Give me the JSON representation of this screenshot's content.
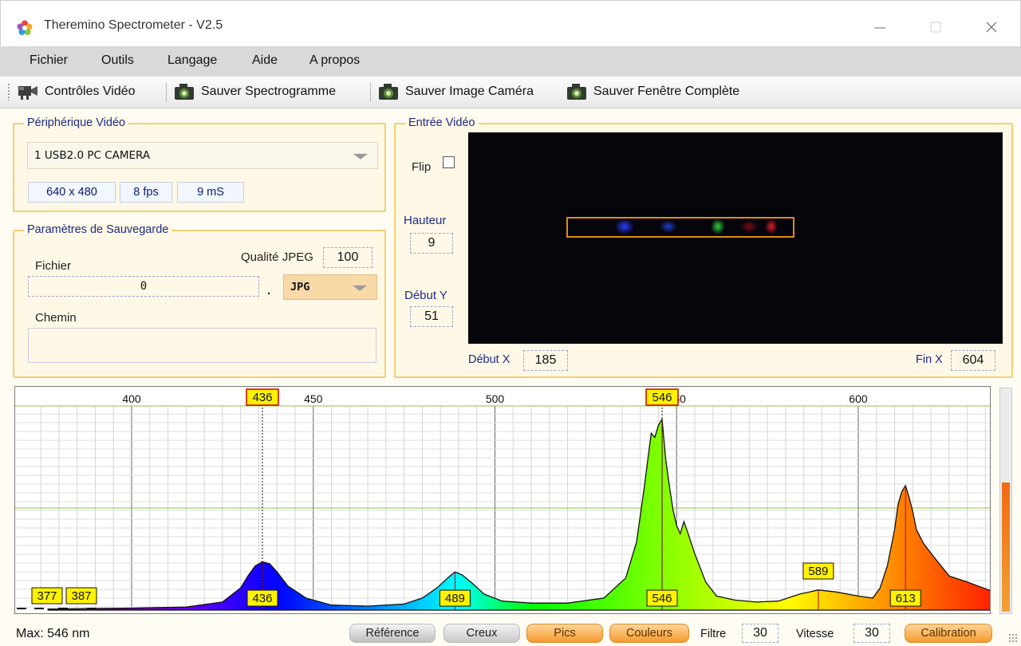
{
  "window": {
    "title": "Theremino Spectrometer - V2.5"
  },
  "menu": [
    "Fichier",
    "Outils",
    "Langage",
    "Aide",
    "A propos"
  ],
  "toolbar": {
    "video_controls": "Contrôles Vidéo",
    "save_spectrogram": "Sauver Spectrogramme",
    "save_camera_image": "Sauver Image Caméra",
    "save_full_window": "Sauver Fenêtre Complète"
  },
  "video_device": {
    "group_title": "Périphérique Vidéo",
    "device": "1 USB2.0 PC CAMERA",
    "resolution": "640 x 480",
    "fps": "8 fps",
    "latency": "9 mS"
  },
  "save_params": {
    "group_title": "Paramètres de Sauvegarde",
    "file_label": "Fichier",
    "jpeg_quality_label": "Qualité JPEG",
    "jpeg_quality": "100",
    "file_value": "0",
    "dot": ".",
    "format": "JPG",
    "path_label": "Chemin",
    "path_value": ""
  },
  "video_input": {
    "group_title": "Entrée Vidéo",
    "flip_label": "Flip",
    "flip_checked": false,
    "height_label": "Hauteur",
    "height": "9",
    "start_y_label": "Début Y",
    "start_y": "51",
    "start_x_label": "Début X",
    "start_x": "185",
    "end_x_label": "Fin X",
    "end_x": "604"
  },
  "chart_data": {
    "type": "area",
    "title": "",
    "xlabel": "",
    "ylabel": "",
    "x_ticks": [
      400,
      450,
      500,
      550,
      600
    ],
    "x_tick_labels": [
      "400",
      "450",
      "500",
      "550",
      "600"
    ],
    "xlim": [
      377,
      640
    ],
    "ylim": [
      0,
      100
    ],
    "grid": true,
    "cursor_markers": [
      436,
      546
    ],
    "peaks": [
      {
        "label": "377",
        "x": 378.5
      },
      {
        "label": "387",
        "x": 385
      },
      {
        "label": "436",
        "x": 436
      },
      {
        "label": "489",
        "x": 489
      },
      {
        "label": "546",
        "x": 546
      },
      {
        "label": "589",
        "x": 589
      },
      {
        "label": "613",
        "x": 613
      }
    ],
    "series": [
      {
        "x": [
          377,
          390,
          400,
          415,
          425,
          430,
          432,
          434,
          436,
          438,
          440,
          443,
          448,
          455,
          465,
          475,
          480,
          484,
          487,
          489,
          491,
          494,
          497,
          502,
          510,
          520,
          530,
          536,
          539,
          541,
          543,
          544,
          545,
          546,
          547,
          548,
          549,
          550,
          551,
          552,
          553,
          555,
          558,
          561,
          566,
          572,
          578,
          584,
          589,
          594,
          600,
          604,
          606,
          608,
          610,
          611,
          612,
          613,
          614,
          615,
          616,
          618,
          621,
          625,
          630,
          633,
          636,
          640
        ],
        "values": [
          0.5,
          0.8,
          1.0,
          1.5,
          4,
          11,
          17,
          22,
          24,
          23,
          19,
          12,
          6,
          2.5,
          2,
          3,
          6,
          11,
          16,
          19,
          17.5,
          13,
          8,
          4.5,
          3.5,
          3.5,
          6,
          16,
          34,
          60,
          88,
          86,
          92,
          95,
          75,
          62,
          50,
          42,
          38,
          44,
          39,
          28,
          14,
          7,
          5,
          4,
          4.5,
          8,
          10,
          9,
          7,
          6,
          11,
          22,
          40,
          53,
          59,
          62,
          56,
          49,
          40,
          33,
          26,
          17,
          14,
          12,
          10,
          8
        ]
      }
    ]
  },
  "status": {
    "max_text": "Max: 546 nm",
    "reference": "Référence",
    "valleys": "Creux",
    "peaks": "Pics",
    "colors": "Couleurs",
    "filter_label": "Filtre",
    "filter": "30",
    "speed_label": "Vitesse",
    "speed": "30",
    "calibration": "Calibration"
  },
  "scroll_level": 0.58
}
